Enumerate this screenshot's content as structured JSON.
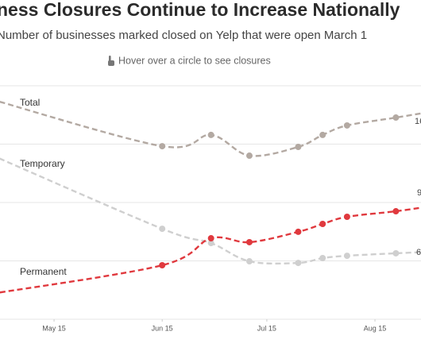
{
  "chart_data": {
    "type": "line",
    "title": "ness Closures Continue to Increase Nationally",
    "subtitle": "Number of businesses marked closed on Yelp that were open March 1",
    "annotation": "Hover over a circle to see closures",
    "xlim": [
      120.5,
      241.2
    ],
    "xticks": [
      {
        "value": 136,
        "label": "May 15"
      },
      {
        "value": 167,
        "label": "Jun 15"
      },
      {
        "value": 197,
        "label": "Jul 15"
      },
      {
        "value": 228,
        "label": "Aug 15"
      }
    ],
    "ylim": [
      0,
      160000
    ],
    "yticks": [
      0,
      40000,
      80000,
      120000,
      160000
    ],
    "grid": true,
    "x": [
      118,
      167,
      181,
      192,
      206,
      213,
      220,
      234,
      245
    ],
    "series": [
      {
        "name": "Total",
        "color": "#b3a9a2",
        "end_label": "16",
        "values": [
          150700,
          118600,
          126300,
          112100,
          118100,
          126300,
          132800,
          138200,
          142600
        ]
      },
      {
        "name": "Temporary",
        "color": "#cfcfcf",
        "end_label": "9",
        "values": [
          112600,
          62000,
          52200,
          39700,
          38600,
          41900,
          43500,
          45200,
          46300
        ]
      },
      {
        "name": "Permanent",
        "color": "#e0393e",
        "end_label": "6",
        "values": [
          17400,
          37000,
          55500,
          52800,
          59900,
          65300,
          70200,
          74000,
          77800
        ]
      }
    ]
  }
}
